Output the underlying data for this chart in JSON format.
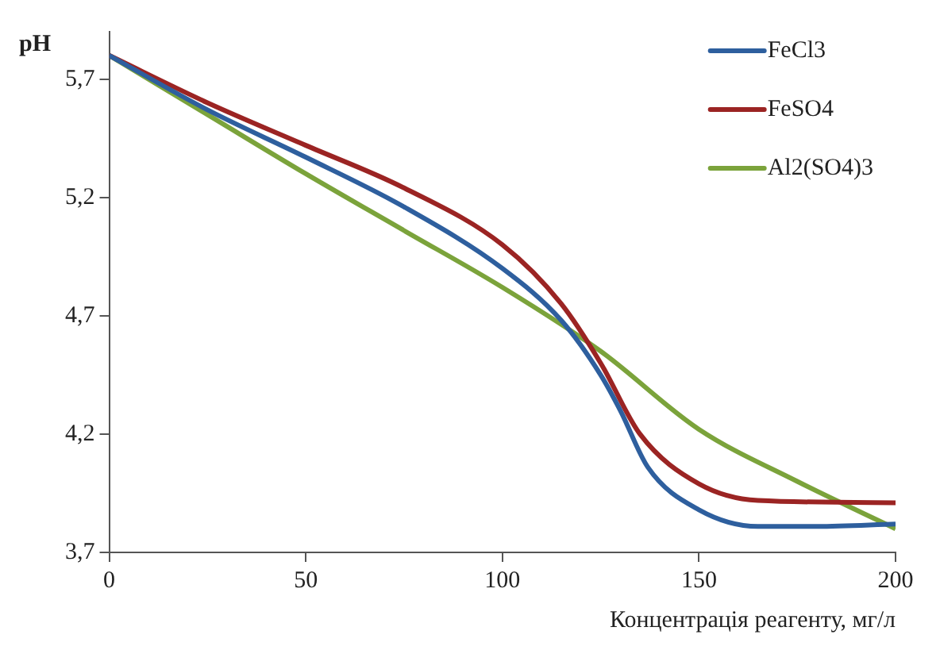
{
  "chart_data": {
    "type": "line",
    "ylabel": "pH",
    "xlabel": "Концентрація реагенту, мг/л",
    "xlim": [
      0,
      200
    ],
    "xticks": [
      0,
      50,
      100,
      150,
      200
    ],
    "ylim": [
      3.7,
      5.9
    ],
    "yticks": [
      {
        "value": 3.7,
        "label": "3,7"
      },
      {
        "value": 4.2,
        "label": "4,2"
      },
      {
        "value": 4.7,
        "label": "4,7"
      },
      {
        "value": 5.2,
        "label": "5,2"
      },
      {
        "value": 5.7,
        "label": "5,7"
      }
    ],
    "grid": false,
    "legend": "top right",
    "marker": "none",
    "line_style": "solid",
    "series": [
      {
        "name": "FeCl3",
        "color": "#2e5f9e",
        "x": [
          0,
          25,
          50,
          75,
          100,
          115,
          125,
          130,
          137,
          150,
          165,
          180,
          200
        ],
        "values": [
          5.8,
          5.57,
          5.37,
          5.16,
          4.9,
          4.68,
          4.45,
          4.3,
          4.06,
          3.88,
          3.81,
          3.81,
          3.82
        ]
      },
      {
        "name": "FeSO4",
        "color": "#9b2423",
        "x": [
          0,
          25,
          50,
          75,
          100,
          115,
          125,
          135,
          150,
          165,
          200
        ],
        "values": [
          5.8,
          5.6,
          5.42,
          5.24,
          5.0,
          4.75,
          4.5,
          4.2,
          3.99,
          3.92,
          3.91
        ]
      },
      {
        "name": "Al2(SO4)3",
        "color": "#7ba33b",
        "x": [
          0,
          25,
          50,
          75,
          100,
          125,
          150,
          175,
          200
        ],
        "values": [
          5.8,
          5.55,
          5.3,
          5.06,
          4.82,
          4.55,
          4.22,
          4.0,
          3.8
        ]
      }
    ]
  }
}
